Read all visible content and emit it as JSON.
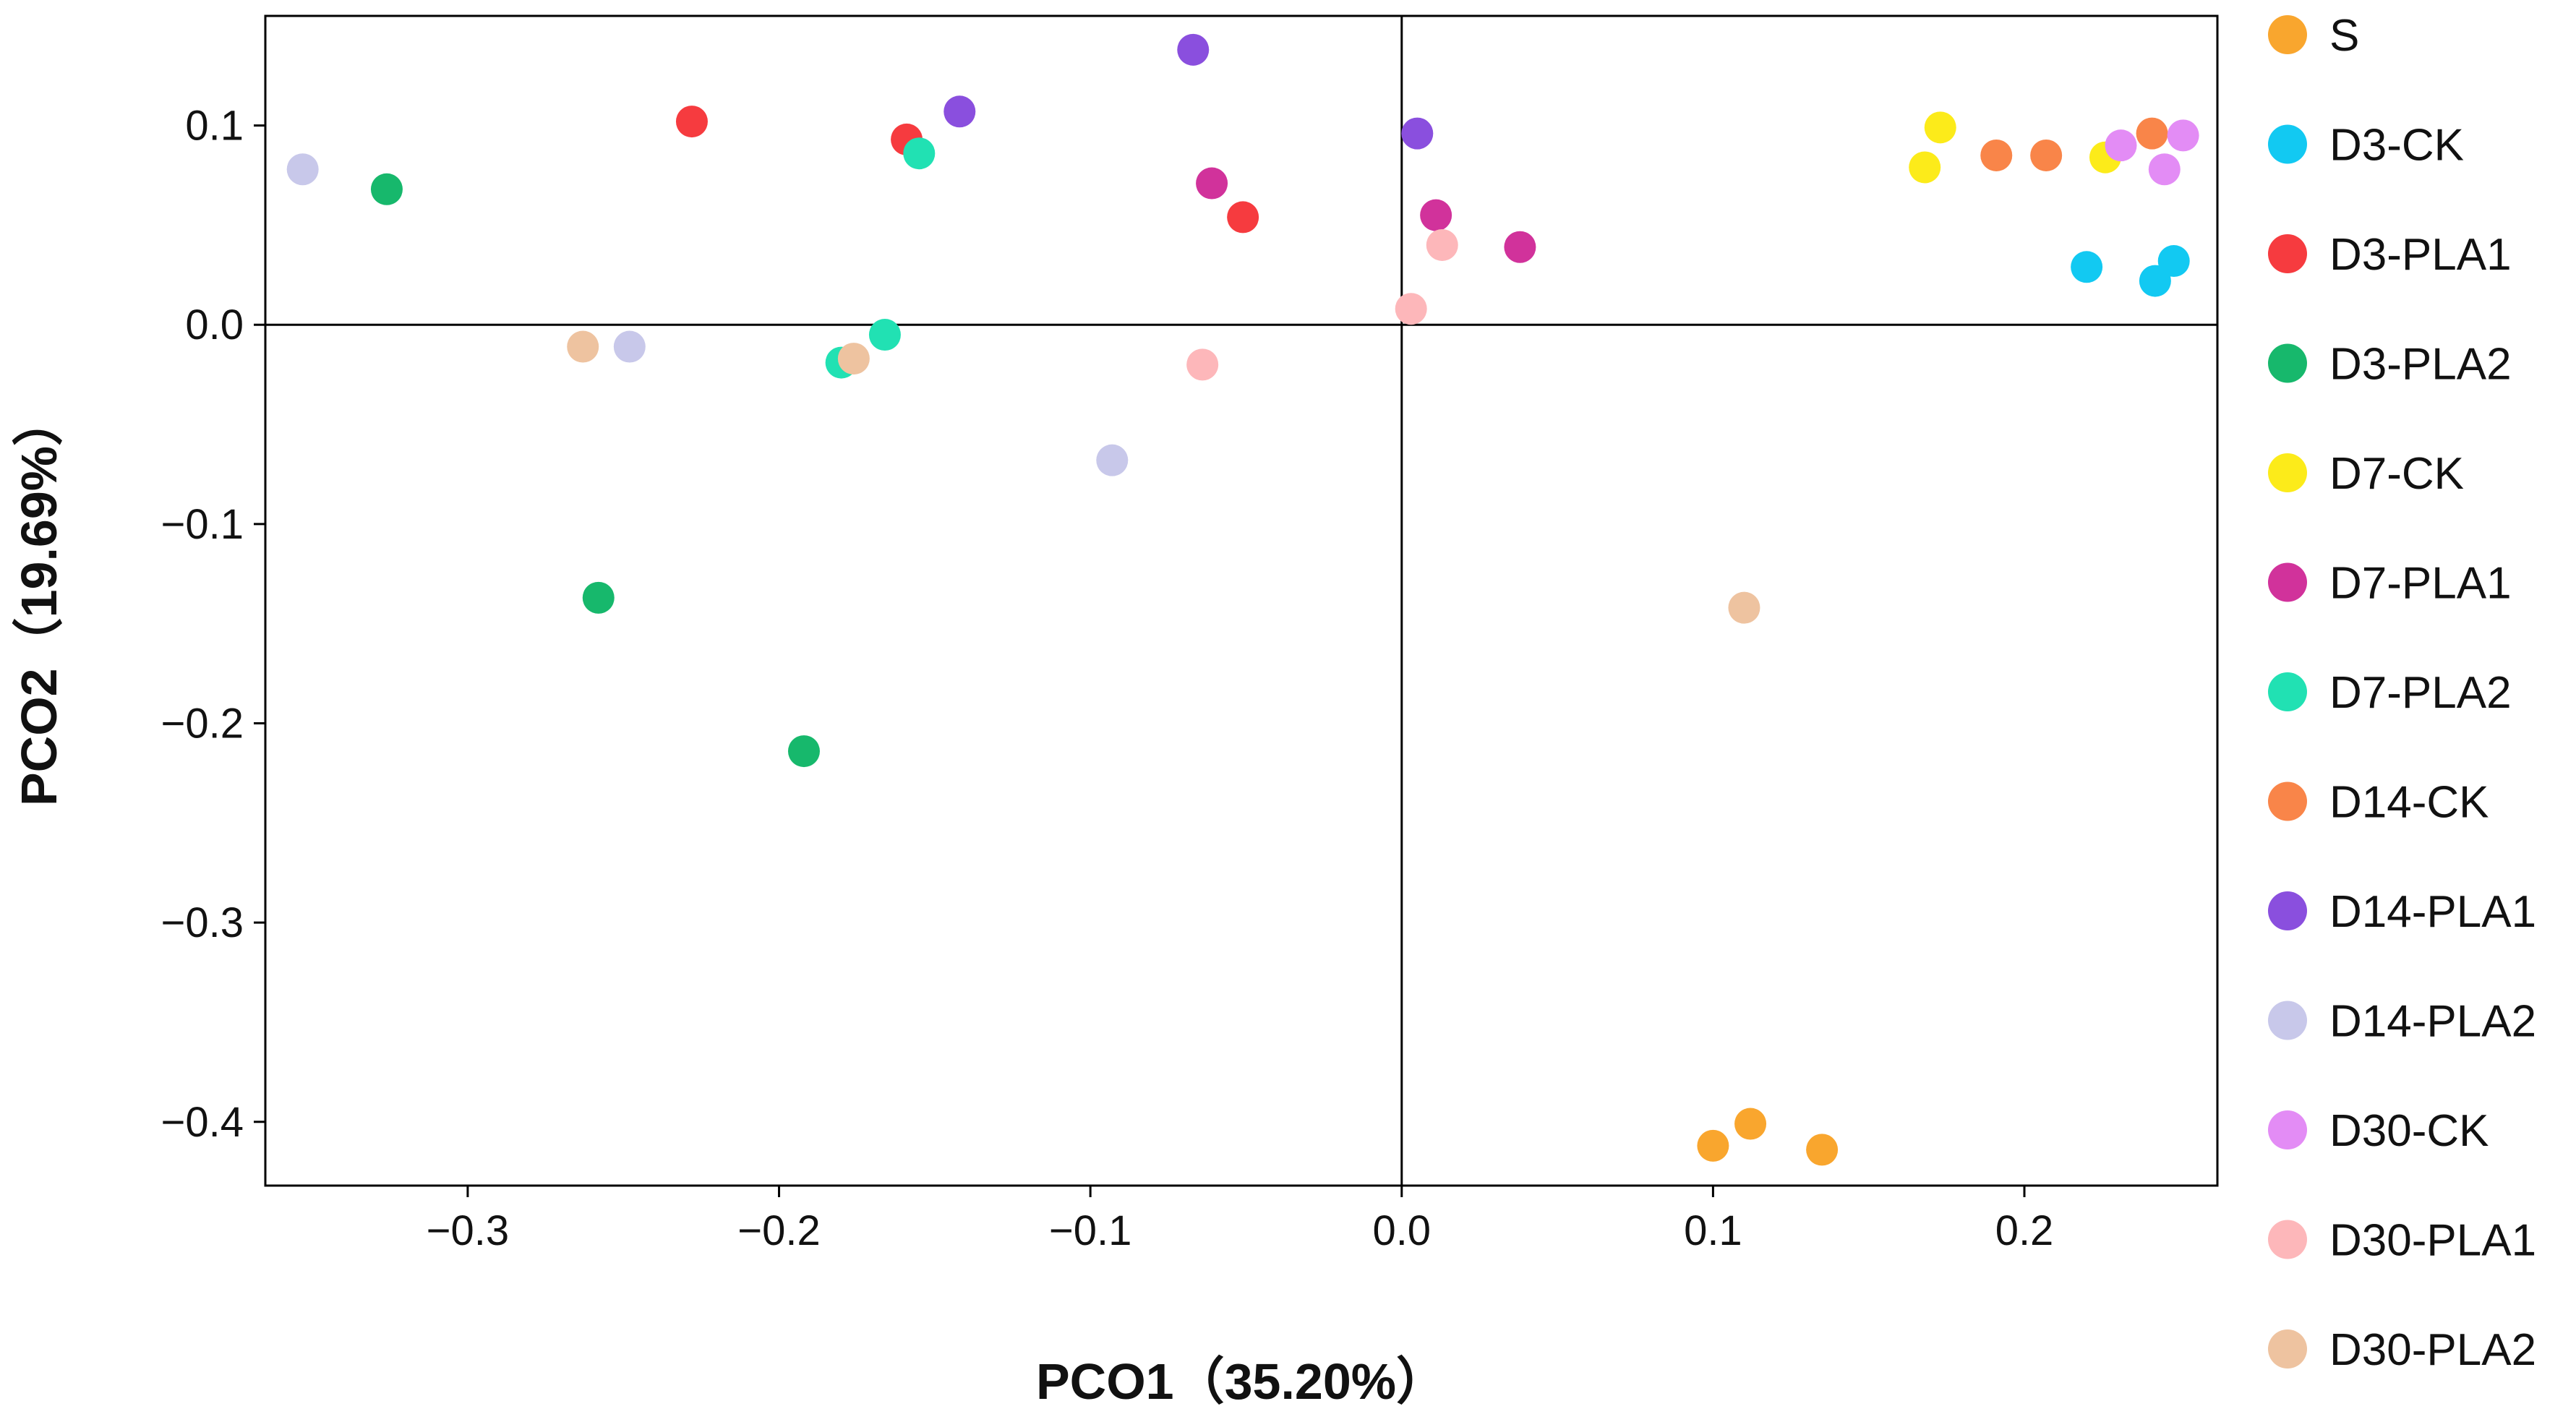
{
  "chart_data": {
    "type": "scatter",
    "title": "",
    "xlabel": "PCO1（35.20%）",
    "ylabel": "PCO2（19.69%）",
    "xlim": [
      -0.365,
      0.262
    ],
    "ylim": [
      -0.432,
      0.155
    ],
    "xticks": [
      -0.3,
      -0.2,
      -0.1,
      0.0,
      0.1,
      0.2
    ],
    "xtick_labels": [
      "−0.3",
      "−0.2",
      "−0.1",
      "0.0",
      "0.1",
      "0.2"
    ],
    "yticks": [
      0.1,
      0.0,
      -0.1,
      -0.2,
      -0.3,
      -0.4
    ],
    "ytick_labels": [
      "0.1",
      "0.0",
      "−0.1",
      "−0.2",
      "−0.3",
      "−0.4"
    ],
    "reference_lines": {
      "x": 0.0,
      "y": 0.0
    },
    "grid": false,
    "legend_position": "right",
    "series": [
      {
        "name": "S",
        "color": "#F9A62E",
        "points": [
          [
            0.1,
            -0.412
          ],
          [
            0.112,
            -0.401
          ],
          [
            0.135,
            -0.414
          ]
        ]
      },
      {
        "name": "D3-CK",
        "color": "#12C9F2",
        "points": [
          [
            0.22,
            0.029
          ],
          [
            0.242,
            0.022
          ],
          [
            0.248,
            0.032
          ]
        ]
      },
      {
        "name": "D3-PLA1",
        "color": "#F63B3F",
        "points": [
          [
            -0.228,
            0.102
          ],
          [
            -0.159,
            0.093
          ],
          [
            -0.051,
            0.054
          ]
        ]
      },
      {
        "name": "D3-PLA2",
        "color": "#17B86C",
        "points": [
          [
            -0.326,
            0.068
          ],
          [
            -0.258,
            -0.137
          ],
          [
            -0.192,
            -0.214
          ]
        ]
      },
      {
        "name": "D7-CK",
        "color": "#FCEB1A",
        "points": [
          [
            0.168,
            0.079
          ],
          [
            0.173,
            0.099
          ],
          [
            0.226,
            0.084
          ]
        ]
      },
      {
        "name": "D7-PLA1",
        "color": "#D1329B",
        "points": [
          [
            -0.061,
            0.071
          ],
          [
            0.011,
            0.055
          ],
          [
            0.038,
            0.039
          ]
        ]
      },
      {
        "name": "D7-PLA2",
        "color": "#21E1B3",
        "points": [
          [
            -0.155,
            0.086
          ],
          [
            -0.166,
            -0.005
          ],
          [
            -0.18,
            -0.019
          ]
        ]
      },
      {
        "name": "D14-CK",
        "color": "#F98549",
        "points": [
          [
            0.191,
            0.085
          ],
          [
            0.207,
            0.085
          ],
          [
            0.241,
            0.096
          ]
        ]
      },
      {
        "name": "D14-PLA1",
        "color": "#8A4FDE",
        "points": [
          [
            -0.067,
            0.138
          ],
          [
            -0.142,
            0.107
          ],
          [
            0.005,
            0.096
          ]
        ]
      },
      {
        "name": "D14-PLA2",
        "color": "#C8C8EA",
        "points": [
          [
            -0.353,
            0.078
          ],
          [
            -0.248,
            -0.011
          ],
          [
            -0.093,
            -0.068
          ]
        ]
      },
      {
        "name": "D30-CK",
        "color": "#E38CF5",
        "points": [
          [
            0.231,
            0.09
          ],
          [
            0.245,
            0.078
          ],
          [
            0.251,
            0.095
          ]
        ]
      },
      {
        "name": "D30-PLA1",
        "color": "#FDB7BA",
        "points": [
          [
            -0.064,
            -0.02
          ],
          [
            0.003,
            0.008
          ],
          [
            0.013,
            0.04
          ]
        ]
      },
      {
        "name": "D30-PLA2",
        "color": "#EEC3A0",
        "points": [
          [
            -0.263,
            -0.011
          ],
          [
            -0.176,
            -0.017
          ],
          [
            0.11,
            -0.142
          ]
        ]
      }
    ]
  }
}
